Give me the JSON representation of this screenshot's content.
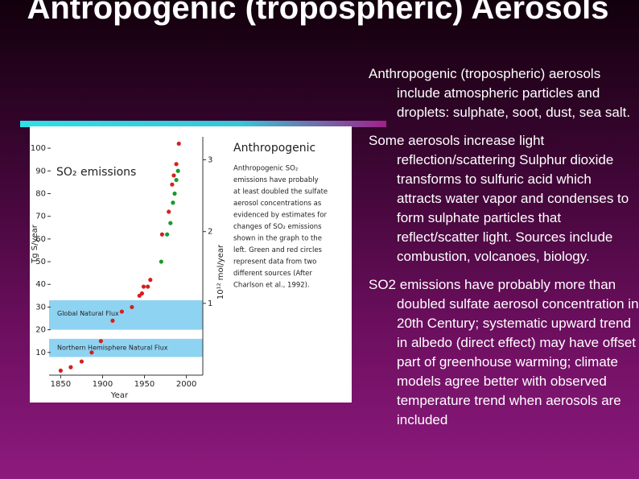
{
  "slide": {
    "title": "Antropogenic (tropospheric) Aerosols",
    "bullets": [
      "Anthropogenic (tropospheric) aerosols include atmospheric particles and droplets: sulphate, soot, dust, sea salt.",
      "Some aerosols increase light reflection/scattering Sulphur dioxide transforms to sulfuric acid which attracts water vapor and condenses to form sulphate particles that reflect/scatter light. Sources include combustion, volcanoes, biology.",
      "SO2 emissions have probably more than doubled sulfate aerosol concentration in 20th Century; systematic upward trend in albedo (direct effect) may have offset part of greenhouse warming; climate models agree better with observed temperature trend when aerosols are included"
    ]
  },
  "chart_data": {
    "type": "scatter",
    "title": "Anthropogenic",
    "subtitle": "SO₂ emissions",
    "xlabel": "Year",
    "ylabel": "Tg S/year",
    "y2label": "10¹² mol/year",
    "description": [
      "Anthropogenic SO₂",
      "emissions have probably",
      "at least doubled the sulfate",
      "aerosol concentrations as",
      "evidenced by estimates for",
      "changes of SO₂ emissions",
      "shown in the graph to the",
      "left. Green and red circles",
      "represent data from two",
      "different sources (After",
      "Charlson et al., 1992)."
    ],
    "xlim": [
      1840,
      2010
    ],
    "xticks": [
      1850,
      1900,
      1950,
      2000
    ],
    "ylim": [
      0,
      105
    ],
    "yticks": [
      10,
      20,
      30,
      40,
      50,
      60,
      70,
      80,
      90,
      100
    ],
    "y2lim": [
      0,
      3.32
    ],
    "y2ticks": [
      1,
      2,
      3
    ],
    "bands": [
      {
        "label": "Global Natural Flux",
        "from": 20,
        "to": 33,
        "color": "#8fd3f2"
      },
      {
        "label": "Northern Hemisphere Natural Flux",
        "from": 8,
        "to": 16,
        "color": "#8fd3f2"
      }
    ],
    "series": [
      {
        "name": "red",
        "color": "#d42020",
        "x": [
          1850,
          1862,
          1875,
          1887,
          1898,
          1912,
          1923,
          1935,
          1944,
          1947,
          1949,
          1954,
          1957,
          1971,
          1979,
          1983,
          1985,
          1988,
          1991
        ],
        "values": [
          2,
          3.5,
          6,
          10,
          15,
          24,
          28,
          30,
          35,
          36,
          39,
          39,
          42,
          62,
          72,
          84,
          88,
          93,
          102
        ]
      },
      {
        "name": "green",
        "color": "#1a9a2a",
        "x": [
          1970,
          1977,
          1981,
          1984,
          1986,
          1988,
          1990
        ],
        "values": [
          50,
          62,
          67,
          76,
          80,
          86,
          90
        ]
      }
    ]
  }
}
